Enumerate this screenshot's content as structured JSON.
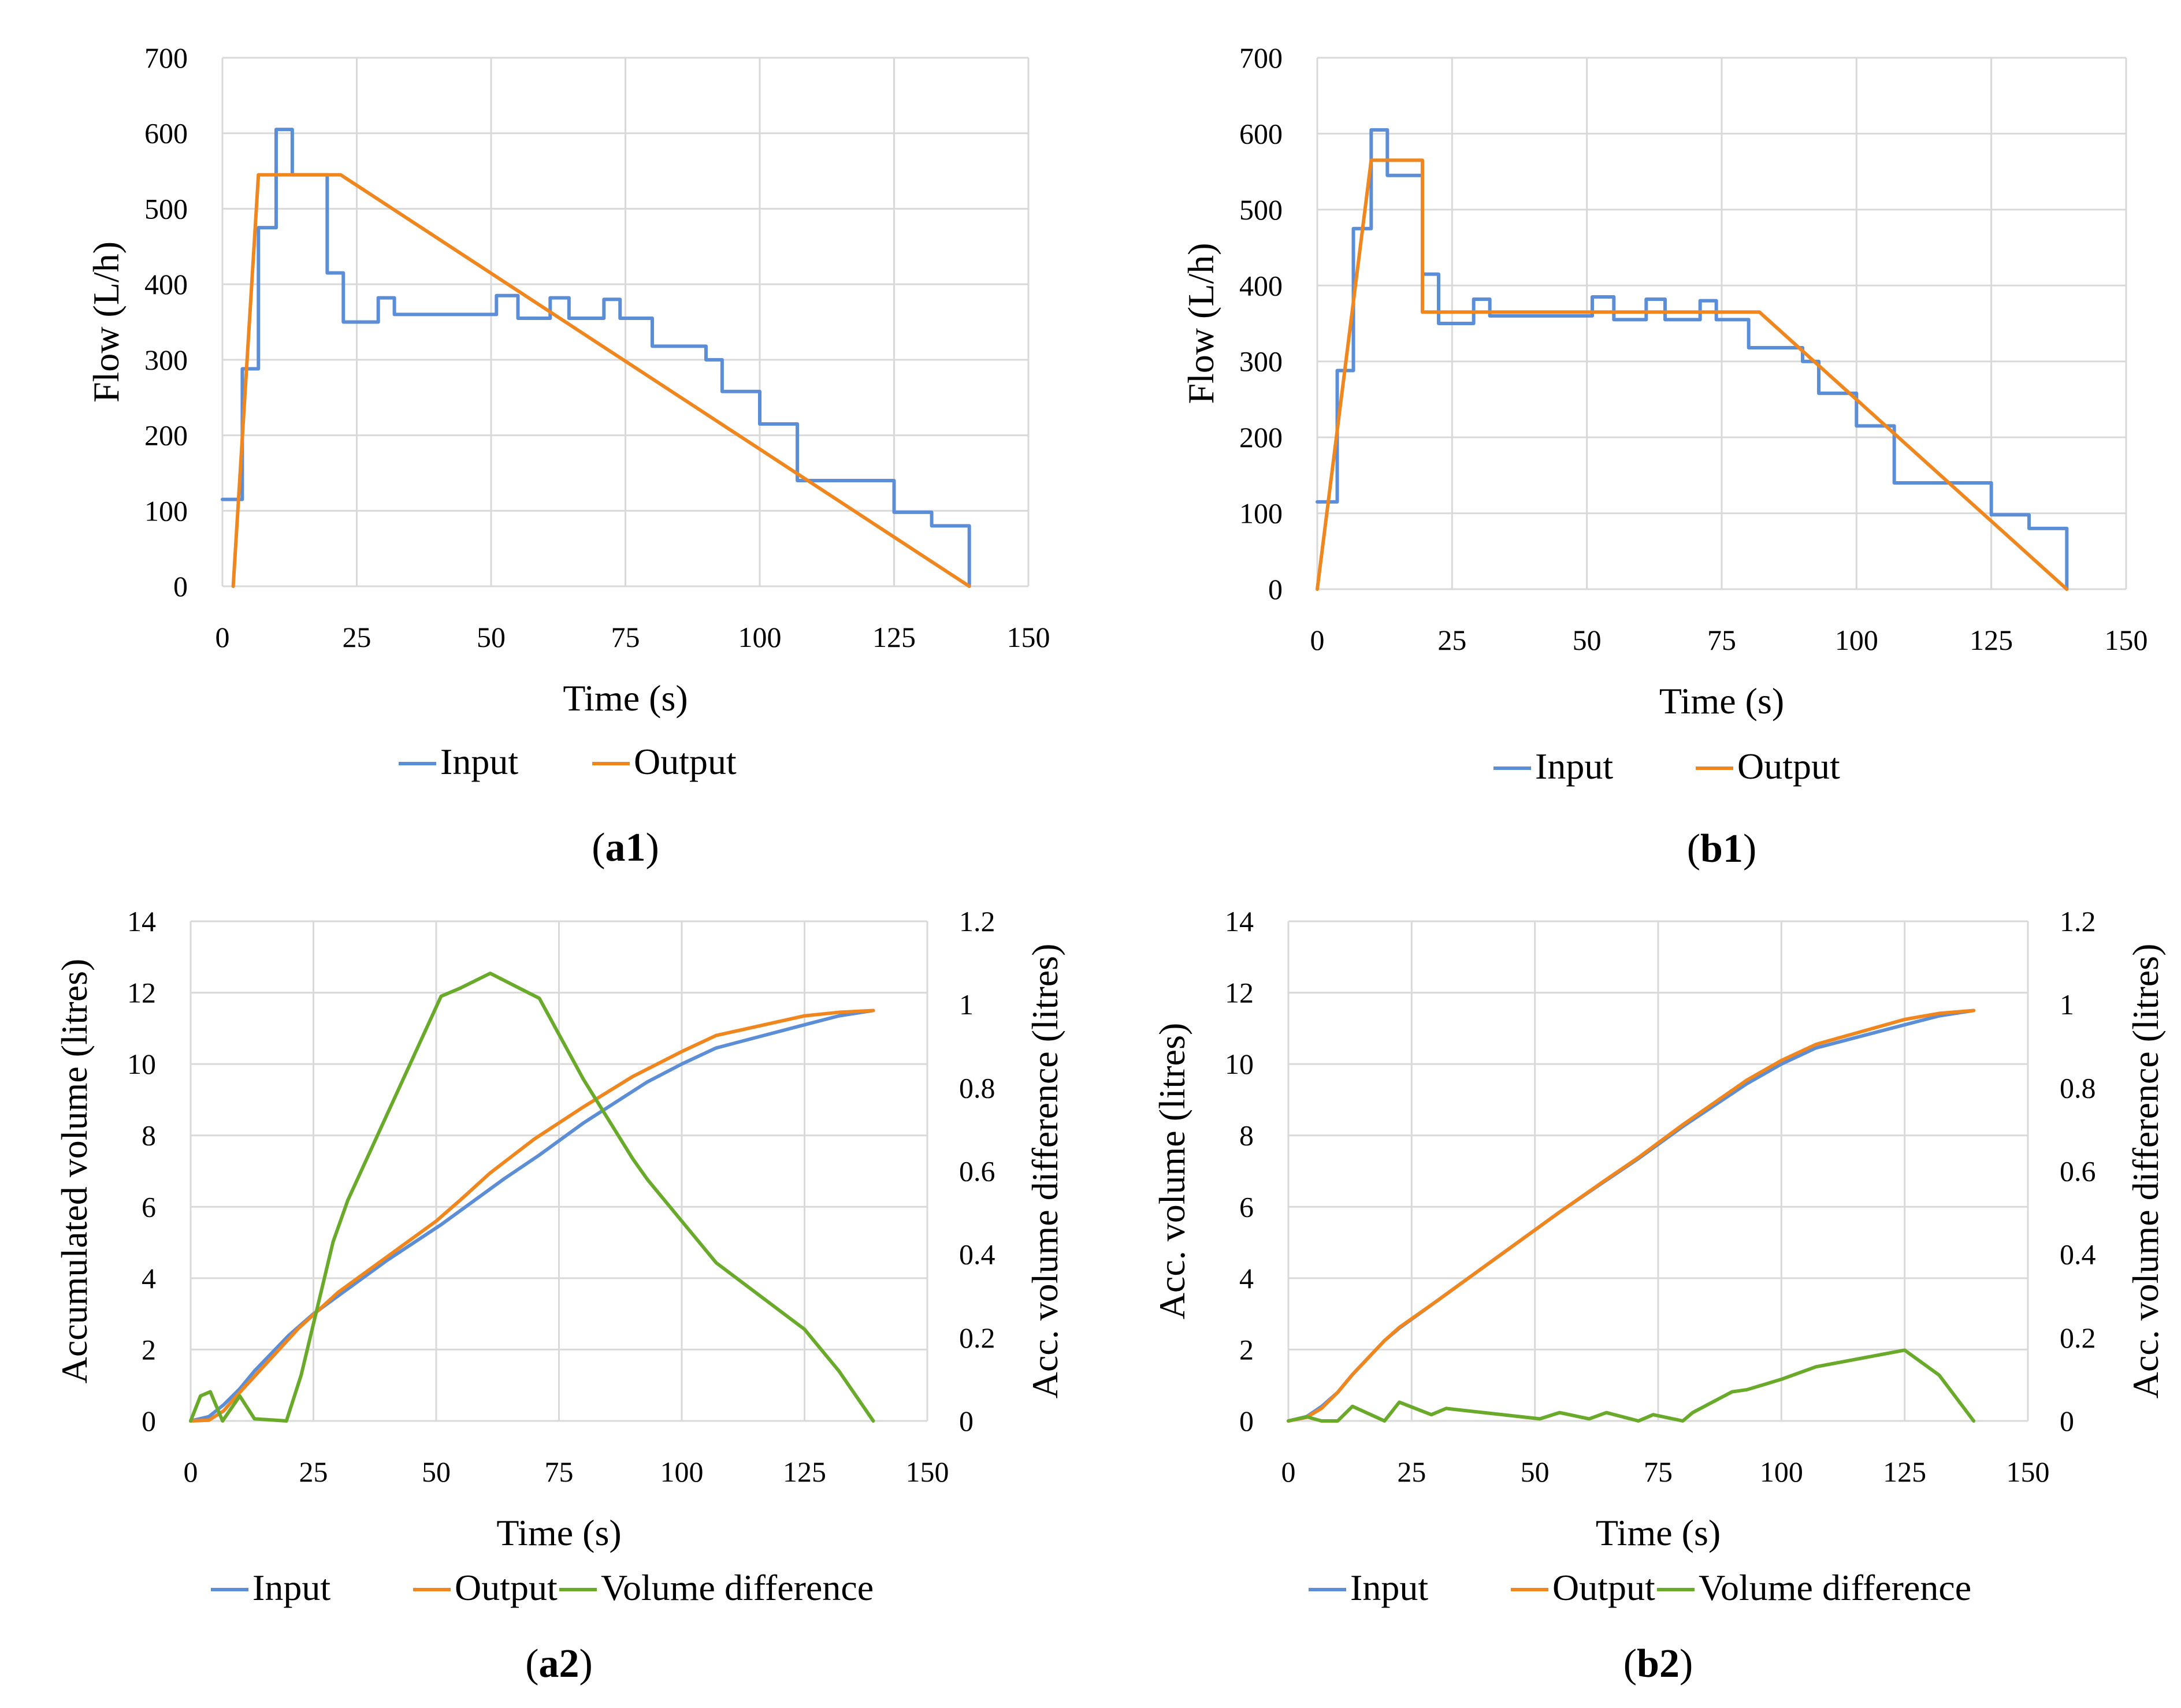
{
  "colors": {
    "input": "#5b8ed6",
    "output": "#f0861e",
    "volume_difference": "#6aaa2a",
    "grid": "#d9d9d9"
  },
  "chart_data": [
    {
      "id": "a1",
      "type": "line",
      "panel_label": "a1",
      "title": "",
      "xlabel": "Time (s)",
      "ylabel": "Flow (L/h)",
      "xlim": [
        0,
        150
      ],
      "ylim": [
        0,
        700
      ],
      "xticks": [
        "0",
        "25",
        "50",
        "75",
        "100",
        "125",
        "150"
      ],
      "yticks": [
        "0",
        "100",
        "200",
        "300",
        "400",
        "500",
        "600",
        "700"
      ],
      "grid": true,
      "legend": "bottom",
      "series": [
        {
          "name": "Input",
          "color_key": "input",
          "step": true,
          "x": [
            0,
            3.7,
            6.7,
            10,
            13,
            16,
            19.5,
            22.5,
            29,
            32,
            51,
            55,
            61,
            64.5,
            71,
            74,
            80,
            90,
            93,
            100,
            107,
            125,
            132,
            139
          ],
          "y": [
            115,
            288,
            475,
            605,
            545,
            545,
            415,
            350,
            382,
            360,
            385,
            355,
            382,
            355,
            380,
            355,
            318,
            300,
            258,
            215,
            140,
            98,
            80,
            0
          ]
        },
        {
          "name": "Output",
          "color_key": "output",
          "step": false,
          "x": [
            2,
            6.7,
            22,
            139
          ],
          "y": [
            0,
            545,
            545,
            0
          ]
        }
      ]
    },
    {
      "id": "b1",
      "type": "line",
      "panel_label": "b1",
      "title": "",
      "xlabel": "Time (s)",
      "ylabel": "Flow (L/h)",
      "xlim": [
        0,
        150
      ],
      "ylim": [
        0,
        700
      ],
      "xticks": [
        "0",
        "25",
        "50",
        "75",
        "100",
        "125",
        "150"
      ],
      "yticks": [
        "0",
        "100",
        "200",
        "300",
        "400",
        "500",
        "600",
        "700"
      ],
      "grid": true,
      "legend": "bottom",
      "series": [
        {
          "name": "Input",
          "color_key": "input",
          "step": true,
          "x": [
            0,
            3.7,
            6.7,
            10,
            13,
            16,
            19.5,
            22.5,
            29,
            32,
            51,
            55,
            61,
            64.5,
            71,
            74,
            80,
            90,
            93,
            100,
            107,
            125,
            132,
            139
          ],
          "y": [
            115,
            288,
            475,
            605,
            545,
            545,
            415,
            350,
            382,
            360,
            385,
            355,
            382,
            355,
            380,
            355,
            318,
            300,
            258,
            215,
            140,
            98,
            80,
            0
          ]
        },
        {
          "name": "Output",
          "color_key": "output",
          "step": false,
          "x": [
            0,
            10,
            19.5,
            19.5,
            82,
            139
          ],
          "y": [
            0,
            565,
            565,
            365,
            365,
            0
          ]
        }
      ]
    },
    {
      "id": "a2",
      "type": "line",
      "panel_label": "a2",
      "title": "",
      "xlabel": "Time (s)",
      "ylabel": "Accumulated volume (litres)",
      "y2label": "Acc. volume difference (litres)",
      "xlim": [
        0,
        150
      ],
      "ylim": [
        0,
        14
      ],
      "y2lim": [
        0,
        1.2
      ],
      "xticks": [
        "0",
        "25",
        "50",
        "75",
        "100",
        "125",
        "150"
      ],
      "yticks": [
        "0",
        "2",
        "4",
        "6",
        "8",
        "10",
        "12",
        "14"
      ],
      "y2ticks": [
        "0",
        "0.2",
        "0.4",
        "0.6",
        "0.8",
        "1",
        "1.2"
      ],
      "grid": true,
      "legend": "bottom",
      "series": [
        {
          "name": "Input",
          "color_key": "input",
          "axis": "left",
          "x": [
            0,
            3.7,
            6.7,
            10,
            13,
            20,
            25,
            30,
            40,
            51,
            55,
            64,
            71,
            80,
            93,
            100,
            107,
            125,
            132,
            139
          ],
          "y": [
            0,
            0.12,
            0.45,
            0.9,
            1.4,
            2.4,
            3.0,
            3.5,
            4.5,
            5.5,
            5.9,
            6.8,
            7.45,
            8.35,
            9.5,
            10.0,
            10.45,
            11.1,
            11.35,
            11.5
          ]
        },
        {
          "name": "Output",
          "color_key": "output",
          "axis": "left",
          "x": [
            0,
            3.7,
            6.7,
            10,
            15,
            22,
            30,
            40,
            50,
            55,
            61,
            70,
            80,
            90,
            100,
            107,
            125,
            132,
            139
          ],
          "y": [
            0,
            0.02,
            0.28,
            0.8,
            1.55,
            2.6,
            3.6,
            4.6,
            5.6,
            6.2,
            6.95,
            7.9,
            8.8,
            9.65,
            10.35,
            10.8,
            11.35,
            11.45,
            11.5
          ]
        },
        {
          "name": "Volume difference",
          "color_key": "volume_difference",
          "axis": "right",
          "x": [
            0,
            2,
            4,
            6.5,
            10,
            13,
            19.5,
            22.5,
            29,
            32,
            51,
            55,
            61,
            71,
            80,
            90,
            93,
            100,
            107,
            125,
            132,
            139
          ],
          "y": [
            0,
            0.06,
            0.07,
            0.0,
            0.06,
            0.005,
            0.0,
            0.11,
            0.43,
            0.53,
            1.02,
            1.04,
            1.075,
            1.015,
            0.82,
            0.63,
            0.58,
            0.48,
            0.38,
            0.22,
            0.12,
            0.0
          ]
        }
      ]
    },
    {
      "id": "b2",
      "type": "line",
      "panel_label": "b2",
      "title": "",
      "xlabel": "Time (s)",
      "ylabel": "Acc. volume (litres)",
      "y2label": "Acc. volume difference (litres)",
      "xlim": [
        0,
        150
      ],
      "ylim": [
        0,
        14
      ],
      "y2lim": [
        0,
        1.2
      ],
      "xticks": [
        "0",
        "25",
        "50",
        "75",
        "100",
        "125",
        "150"
      ],
      "yticks": [
        "0",
        "2",
        "4",
        "6",
        "8",
        "10",
        "12",
        "14"
      ],
      "y2ticks": [
        "0",
        "0.2",
        "0.4",
        "0.6",
        "0.8",
        "1",
        "1.2"
      ],
      "grid": true,
      "legend": "bottom",
      "series": [
        {
          "name": "Input",
          "color_key": "input",
          "axis": "left",
          "x": [
            0,
            3.7,
            6.7,
            10,
            13,
            19.5,
            22.5,
            30,
            40,
            51,
            55,
            64,
            71,
            80,
            93,
            100,
            107,
            125,
            132,
            139
          ],
          "y": [
            0,
            0.12,
            0.4,
            0.8,
            1.3,
            2.25,
            2.6,
            3.35,
            4.35,
            5.45,
            5.85,
            6.7,
            7.35,
            8.25,
            9.45,
            10.0,
            10.45,
            11.1,
            11.35,
            11.5
          ]
        },
        {
          "name": "Output",
          "color_key": "output",
          "axis": "left",
          "x": [
            0,
            3.7,
            6.7,
            10,
            13,
            19.5,
            22.5,
            30,
            40,
            51,
            55,
            64,
            71,
            80,
            93,
            100,
            107,
            125,
            132,
            139
          ],
          "y": [
            0,
            0.1,
            0.35,
            0.8,
            1.3,
            2.25,
            2.62,
            3.35,
            4.35,
            5.45,
            5.85,
            6.72,
            7.38,
            8.3,
            9.55,
            10.1,
            10.55,
            11.25,
            11.42,
            11.5
          ]
        },
        {
          "name": "Volume difference",
          "color_key": "volume_difference",
          "axis": "right",
          "x": [
            0,
            3.7,
            6.7,
            10,
            13,
            19.5,
            22.5,
            29,
            32,
            51,
            55,
            61,
            64.5,
            71,
            74,
            80,
            82,
            90,
            93,
            100,
            107,
            125,
            132,
            139
          ],
          "y": [
            0,
            0.01,
            0.0,
            0.0,
            0.035,
            0.0,
            0.045,
            0.015,
            0.03,
            0.005,
            0.02,
            0.005,
            0.02,
            0.0,
            0.015,
            0.0,
            0.02,
            0.07,
            0.075,
            0.1,
            0.13,
            0.17,
            0.11,
            0.0
          ]
        }
      ]
    }
  ]
}
